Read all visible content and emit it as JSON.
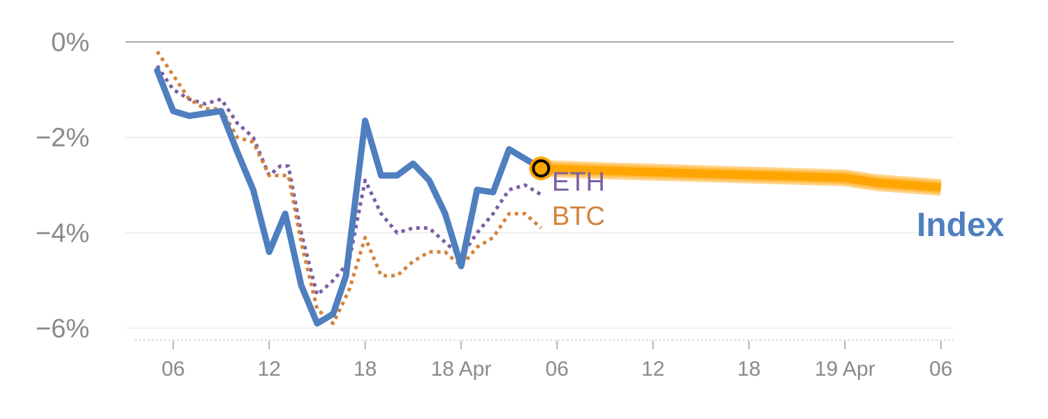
{
  "chart_data": {
    "type": "line",
    "y_unit": "%",
    "ylim": [
      -6.25,
      0.2
    ],
    "y_ticks": [
      {
        "value": 0,
        "label": "0%"
      },
      {
        "value": -2,
        "label": "−2%"
      },
      {
        "value": -4,
        "label": "−4%"
      },
      {
        "value": -6,
        "label": "−6%"
      }
    ],
    "x_ticks": [
      {
        "hours": 6,
        "label": "06"
      },
      {
        "hours": 12,
        "label": "12"
      },
      {
        "hours": 18,
        "label": "18"
      },
      {
        "hours": 24,
        "label": "18 Apr"
      },
      {
        "hours": 30,
        "label": "06"
      },
      {
        "hours": 36,
        "label": "12"
      },
      {
        "hours": 42,
        "label": "18"
      },
      {
        "hours": 48,
        "label": "19 Apr"
      },
      {
        "hours": 54,
        "label": "06"
      }
    ],
    "xlim": [
      3.6,
      54.8
    ],
    "grid": true,
    "series": [
      {
        "name": "ETH",
        "color": "#7b5ea7",
        "style": "dotted",
        "points": [
          [
            5,
            -0.5
          ],
          [
            6,
            -1.0
          ],
          [
            7,
            -1.2
          ],
          [
            8,
            -1.3
          ],
          [
            9,
            -1.2
          ],
          [
            10,
            -1.7
          ],
          [
            11,
            -2.0
          ],
          [
            12,
            -2.8
          ],
          [
            12.7,
            -2.6
          ],
          [
            13.2,
            -2.6
          ],
          [
            14,
            -4.0
          ],
          [
            15,
            -5.3
          ],
          [
            16,
            -5.0
          ],
          [
            17,
            -4.6
          ],
          [
            18,
            -2.9
          ],
          [
            19,
            -3.6
          ],
          [
            20,
            -4.0
          ],
          [
            21,
            -3.9
          ],
          [
            22,
            -3.9
          ],
          [
            23,
            -4.2
          ],
          [
            24,
            -4.5
          ],
          [
            25,
            -4.0
          ],
          [
            26,
            -3.6
          ],
          [
            27,
            -3.1
          ],
          [
            28,
            -3.0
          ],
          [
            29,
            -3.2
          ]
        ]
      },
      {
        "name": "BTC",
        "color": "#d4833a",
        "style": "dotted",
        "points": [
          [
            5,
            -0.2
          ],
          [
            6,
            -0.7
          ],
          [
            7,
            -1.2
          ],
          [
            8,
            -1.4
          ],
          [
            9,
            -1.4
          ],
          [
            10,
            -2.0
          ],
          [
            11,
            -2.1
          ],
          [
            12,
            -2.8
          ],
          [
            12.7,
            -2.8
          ],
          [
            13.2,
            -2.8
          ],
          [
            14,
            -4.2
          ],
          [
            15,
            -5.6
          ],
          [
            16,
            -5.9
          ],
          [
            17,
            -5.2
          ],
          [
            18,
            -4.1
          ],
          [
            19,
            -4.9
          ],
          [
            20,
            -4.9
          ],
          [
            21,
            -4.6
          ],
          [
            22,
            -4.4
          ],
          [
            23,
            -4.4
          ],
          [
            24,
            -4.7
          ],
          [
            25,
            -4.3
          ],
          [
            26,
            -4.1
          ],
          [
            27,
            -3.6
          ],
          [
            28,
            -3.6
          ],
          [
            29,
            -3.9
          ]
        ]
      },
      {
        "name": "Index",
        "color": "#4f7fbf",
        "style": "solid",
        "points": [
          [
            5,
            -0.6
          ],
          [
            6,
            -1.45
          ],
          [
            7,
            -1.55
          ],
          [
            8,
            -1.5
          ],
          [
            9,
            -1.45
          ],
          [
            10,
            -2.3
          ],
          [
            11,
            -3.1
          ],
          [
            12,
            -4.4
          ],
          [
            13,
            -3.6
          ],
          [
            14,
            -5.1
          ],
          [
            15,
            -5.9
          ],
          [
            16,
            -5.7
          ],
          [
            16.8,
            -4.9
          ],
          [
            18,
            -1.65
          ],
          [
            19,
            -2.8
          ],
          [
            20,
            -2.8
          ],
          [
            21,
            -2.55
          ],
          [
            22,
            -2.9
          ],
          [
            23,
            -3.6
          ],
          [
            24,
            -4.7
          ],
          [
            25,
            -3.1
          ],
          [
            26,
            -3.15
          ],
          [
            27,
            -2.25
          ],
          [
            28,
            -2.45
          ],
          [
            29,
            -2.65
          ]
        ]
      }
    ],
    "forecast": {
      "color": "#ffa500",
      "points": [
        [
          29,
          -2.65
        ],
        [
          33,
          -2.7
        ],
        [
          38,
          -2.75
        ],
        [
          43,
          -2.8
        ],
        [
          48,
          -2.85
        ],
        [
          50,
          -2.95
        ],
        [
          54,
          -3.05
        ]
      ]
    },
    "marker": {
      "x": 29,
      "y": -2.65
    }
  },
  "labels": {
    "eth": "ETH",
    "btc": "BTC",
    "index": "Index"
  }
}
